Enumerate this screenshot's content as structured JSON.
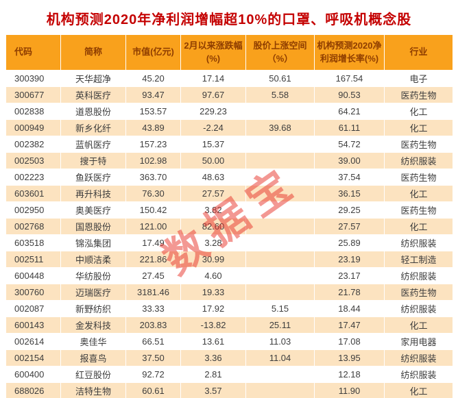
{
  "chart_data": {
    "type": "table",
    "title": "机构预测2020年净利润增幅超10%的口罩、呼吸机概念股",
    "columns": [
      "代码",
      "简称",
      "市值(亿元)",
      "2月以来涨跌幅(%)",
      "股价上涨空间（%）",
      "机构预测2020净利润增长率(%)",
      "行业"
    ],
    "rows": [
      [
        "300390",
        "天华超净",
        "45.20",
        "17.14",
        "50.61",
        "167.54",
        "电子"
      ],
      [
        "300677",
        "英科医疗",
        "93.47",
        "97.67",
        "5.58",
        "90.53",
        "医药生物"
      ],
      [
        "002838",
        "道恩股份",
        "153.57",
        "229.23",
        "",
        "64.21",
        "化工"
      ],
      [
        "000949",
        "新乡化纤",
        "43.89",
        "-2.24",
        "39.68",
        "61.11",
        "化工"
      ],
      [
        "002382",
        "蓝帆医疗",
        "157.23",
        "15.37",
        "",
        "54.72",
        "医药生物"
      ],
      [
        "002503",
        "搜于特",
        "102.98",
        "50.00",
        "",
        "39.00",
        "纺织服装"
      ],
      [
        "002223",
        "鱼跃医疗",
        "363.70",
        "48.63",
        "",
        "37.54",
        "医药生物"
      ],
      [
        "603601",
        "再升科技",
        "76.30",
        "27.57",
        "",
        "36.15",
        "化工"
      ],
      [
        "002950",
        "奥美医疗",
        "150.42",
        "3.82",
        "",
        "29.25",
        "医药生物"
      ],
      [
        "002768",
        "国恩股份",
        "121.00",
        "82.60",
        "",
        "27.57",
        "化工"
      ],
      [
        "603518",
        "锦泓集团",
        "17.49",
        "3.28",
        "",
        "25.89",
        "纺织服装"
      ],
      [
        "002511",
        "中顺洁柔",
        "221.86",
        "30.99",
        "",
        "23.19",
        "轻工制造"
      ],
      [
        "600448",
        "华纺股份",
        "27.45",
        "4.60",
        "",
        "23.17",
        "纺织服装"
      ],
      [
        "300760",
        "迈瑞医疗",
        "3181.46",
        "19.33",
        "",
        "21.78",
        "医药生物"
      ],
      [
        "002087",
        "新野纺织",
        "33.33",
        "17.92",
        "5.15",
        "18.44",
        "纺织服装"
      ],
      [
        "600143",
        "金发科技",
        "203.83",
        "-13.82",
        "25.11",
        "17.47",
        "化工"
      ],
      [
        "002614",
        "奥佳华",
        "66.51",
        "13.61",
        "11.03",
        "17.08",
        "家用电器"
      ],
      [
        "002154",
        "报喜鸟",
        "37.50",
        "3.36",
        "11.04",
        "13.95",
        "纺织服装"
      ],
      [
        "600400",
        "红豆股份",
        "92.72",
        "2.81",
        "",
        "12.18",
        "纺织服装"
      ],
      [
        "688026",
        "洁特生物",
        "60.61",
        "3.57",
        "",
        "11.90",
        "化工"
      ]
    ]
  },
  "watermark": "数据宝",
  "colors": {
    "title_text": "#C40000",
    "header_bg": "#F9A11C",
    "header_text": "#8E3D00",
    "stripe_bg": "#FCE3C0",
    "row_bg": "#FFFFFF",
    "body_text": "#3D3D3D",
    "grid_line": "#FFFFFF",
    "watermark_red": "#E8332A"
  }
}
